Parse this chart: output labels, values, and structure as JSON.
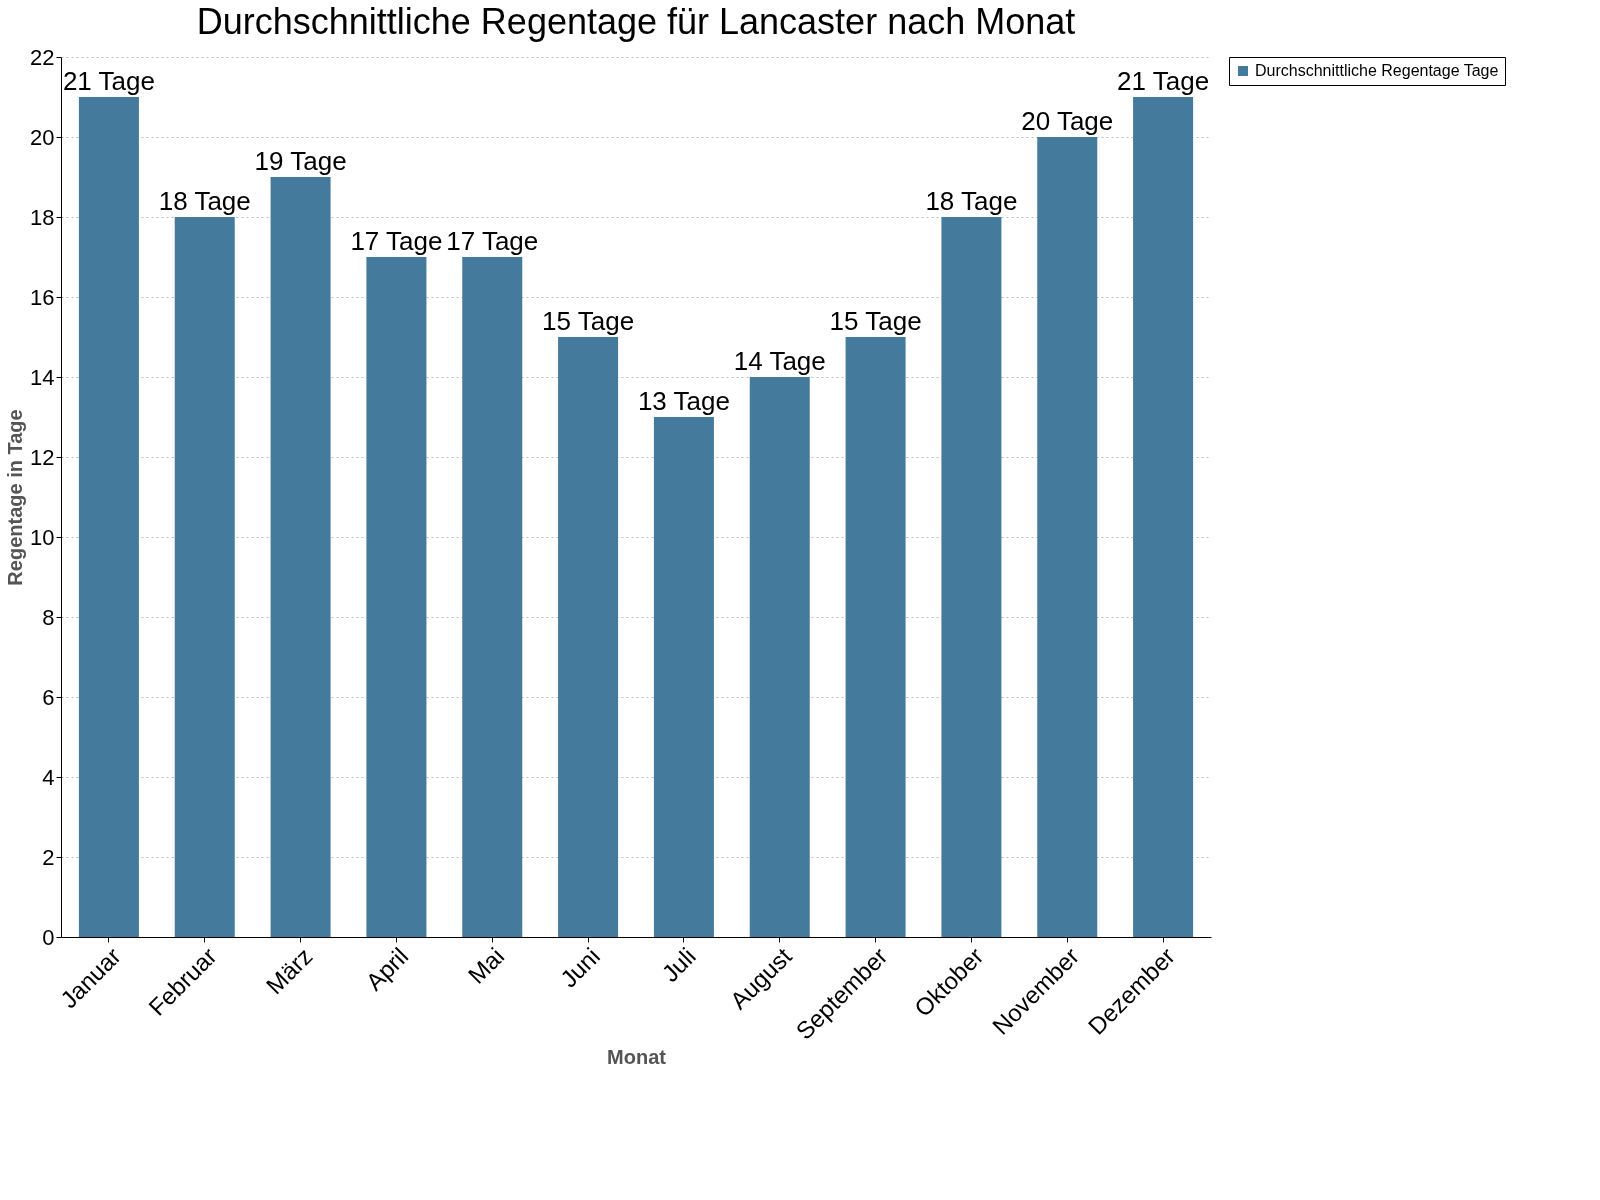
{
  "chart_data": {
    "type": "bar",
    "title": "Durchschnittliche Regentage für Lancaster nach Monat",
    "xlabel": "Monat",
    "ylabel": "Regentage in Tage",
    "categories": [
      "Januar",
      "Februar",
      "März",
      "April",
      "Mai",
      "Juni",
      "Juli",
      "August",
      "September",
      "Oktober",
      "November",
      "Dezember"
    ],
    "series": [
      {
        "name": "Durchschnittliche Regentage Tage",
        "color": "#447a9c",
        "values": [
          21,
          18,
          19,
          17,
          17,
          15,
          13,
          14,
          15,
          18,
          20,
          21
        ],
        "value_labels": [
          "21 Tage",
          "18 Tage",
          "19 Tage",
          "17 Tage",
          "17 Tage",
          "15 Tage",
          "13 Tage",
          "14 Tage",
          "15 Tage",
          "18 Tage",
          "20 Tage",
          "21 Tage"
        ]
      }
    ],
    "ylim": [
      0,
      22
    ],
    "yticks": [
      0,
      2,
      4,
      6,
      8,
      10,
      12,
      14,
      16,
      18,
      20,
      22
    ],
    "grid": "y",
    "legend": "top right"
  }
}
